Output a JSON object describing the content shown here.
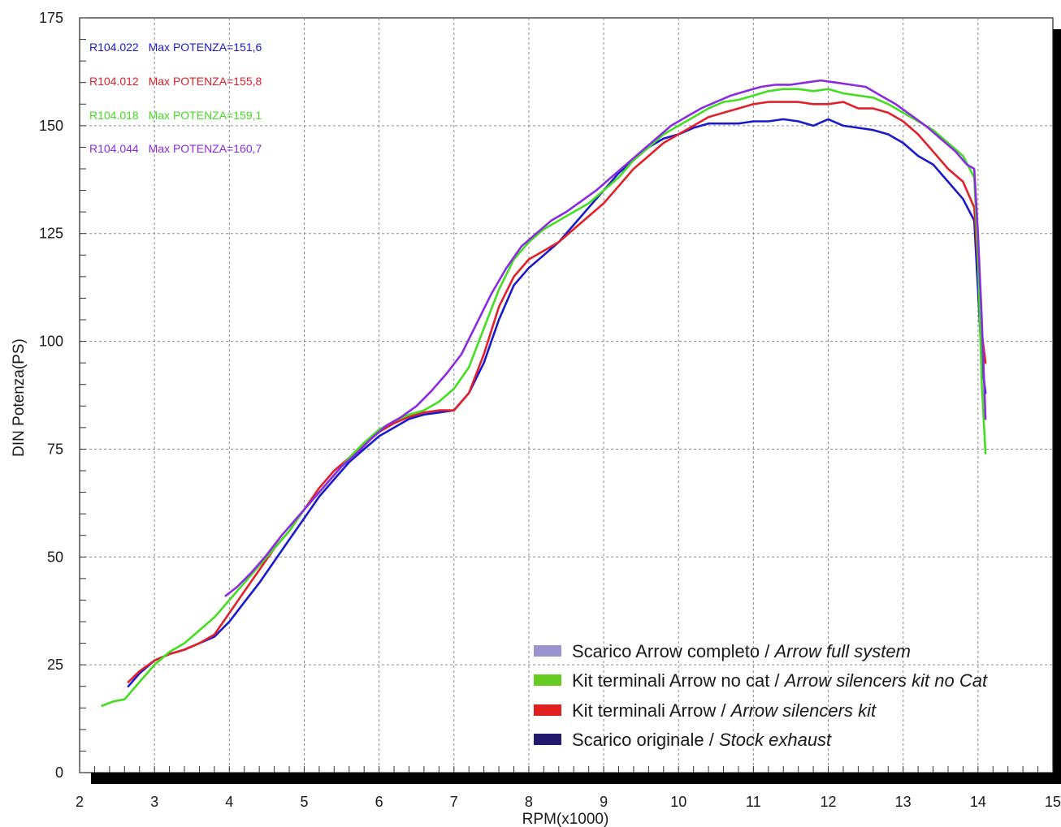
{
  "chart_data": {
    "type": "line",
    "title": "",
    "xlabel": "RPM(x1000)",
    "ylabel": "DIN Potenza(PS)",
    "xlim": [
      2,
      15
    ],
    "ylim": [
      0,
      175
    ],
    "xticks": [
      "2",
      "3",
      "4",
      "5",
      "6",
      "7",
      "8",
      "9",
      "10",
      "11",
      "12",
      "13",
      "14",
      "15"
    ],
    "yticks": [
      "0",
      "25",
      "50",
      "75",
      "100",
      "125",
      "150",
      "175"
    ],
    "grid": true,
    "legend_position": "bottom-right",
    "annotations": [
      {
        "code": "R104.022",
        "text": "Max POTENZA=151,6",
        "color": "#1a1acc"
      },
      {
        "code": "R104.012",
        "text": "Max POTENZA=155,8",
        "color": "#e0202a"
      },
      {
        "code": "R104.018",
        "text": "Max POTENZA=159,1",
        "color": "#44dd22"
      },
      {
        "code": "R104.044",
        "text": "Max POTENZA=160,7",
        "color": "#8a2be2"
      }
    ],
    "legend": [
      {
        "label": "Scarico Arrow completo / ",
        "label_it": "Arrow full system",
        "color": "#9b93cf"
      },
      {
        "label": "Kit terminali Arrow no cat / ",
        "label_it": "Arrow silencers kit no Cat",
        "color": "#66cc22"
      },
      {
        "label": "Kit terminali Arrow / ",
        "label_it": "Arrow silencers kit",
        "color": "#e02020"
      },
      {
        "label": "Scarico originale / ",
        "label_it": "Stock exhaust",
        "color": "#221a6e"
      }
    ],
    "series": [
      {
        "color": "#1a1acc",
        "x": [
          2.65,
          2.8,
          3.0,
          3.2,
          3.4,
          3.6,
          3.8,
          4.0,
          4.2,
          4.4,
          4.6,
          4.8,
          5.0,
          5.2,
          5.4,
          5.6,
          5.8,
          6.0,
          6.2,
          6.4,
          6.6,
          6.8,
          7.0,
          7.2,
          7.4,
          7.6,
          7.8,
          8.0,
          8.2,
          8.4,
          8.6,
          8.8,
          9.0,
          9.2,
          9.4,
          9.6,
          9.8,
          10.0,
          10.2,
          10.4,
          10.6,
          10.8,
          11.0,
          11.2,
          11.4,
          11.6,
          11.8,
          12.0,
          12.2,
          12.4,
          12.6,
          12.8,
          13.0,
          13.2,
          13.4,
          13.6,
          13.8,
          13.95,
          14.0,
          14.05,
          14.1
        ],
        "y": [
          20,
          23,
          26,
          27.5,
          28.5,
          30,
          31.5,
          35,
          39.5,
          44,
          49,
          54,
          59,
          64,
          68,
          72,
          75,
          78,
          80,
          82,
          83,
          83.5,
          84,
          88,
          95,
          105,
          113,
          117,
          120,
          123,
          127,
          131,
          135,
          139,
          142,
          145,
          147,
          148,
          149.5,
          150.5,
          150.5,
          150.5,
          151,
          151,
          151.5,
          151,
          150,
          151.5,
          150,
          149.5,
          149,
          148,
          146,
          143,
          141,
          137,
          133,
          128,
          112,
          95,
          88
        ]
      },
      {
        "color": "#e0202a",
        "x": [
          2.65,
          2.8,
          3.0,
          3.2,
          3.4,
          3.6,
          3.8,
          4.0,
          4.2,
          4.4,
          4.6,
          4.8,
          5.0,
          5.2,
          5.4,
          5.6,
          5.8,
          6.0,
          6.2,
          6.4,
          6.6,
          6.8,
          7.0,
          7.2,
          7.4,
          7.6,
          7.8,
          8.0,
          8.2,
          8.4,
          8.6,
          8.8,
          9.0,
          9.2,
          9.4,
          9.6,
          9.8,
          10.0,
          10.2,
          10.4,
          10.6,
          10.8,
          11.0,
          11.2,
          11.4,
          11.6,
          11.8,
          12.0,
          12.2,
          12.4,
          12.6,
          12.8,
          13.0,
          13.2,
          13.4,
          13.6,
          13.8,
          13.95,
          14.0,
          14.05,
          14.1
        ],
        "y": [
          21,
          23.5,
          26,
          27.5,
          28.5,
          30,
          32,
          37,
          42,
          47,
          52,
          56,
          61,
          66,
          70,
          73,
          76,
          79,
          81,
          82.5,
          83.5,
          84,
          84,
          88,
          97,
          108,
          115,
          119,
          121,
          123,
          126,
          129,
          132,
          136,
          140,
          143,
          146,
          148,
          150,
          152,
          153,
          154,
          155,
          155.5,
          155.5,
          155.5,
          155,
          155,
          155.5,
          154,
          154,
          153,
          151,
          148,
          144,
          140,
          137,
          131,
          118,
          102,
          95
        ]
      },
      {
        "color": "#44dd22",
        "x": [
          2.3,
          2.45,
          2.6,
          2.8,
          3.0,
          3.2,
          3.4,
          3.6,
          3.8,
          4.0,
          4.2,
          4.4,
          4.6,
          4.8,
          5.0,
          5.2,
          5.4,
          5.6,
          5.8,
          6.0,
          6.2,
          6.4,
          6.6,
          6.8,
          7.0,
          7.2,
          7.4,
          7.6,
          7.8,
          8.0,
          8.2,
          8.4,
          8.6,
          8.8,
          9.0,
          9.2,
          9.4,
          9.6,
          9.8,
          10.0,
          10.2,
          10.4,
          10.6,
          10.8,
          11.0,
          11.2,
          11.4,
          11.6,
          11.8,
          12.0,
          12.2,
          12.4,
          12.6,
          12.8,
          13.0,
          13.2,
          13.4,
          13.6,
          13.8,
          13.95,
          14.0,
          14.05,
          14.1
        ],
        "y": [
          15.5,
          16.5,
          17,
          21,
          25,
          28,
          30,
          33,
          36,
          40,
          44,
          48,
          52,
          56,
          61,
          65,
          69,
          73,
          76.5,
          79.5,
          81.5,
          83,
          84,
          86,
          89,
          94,
          103,
          112,
          119,
          123,
          126,
          128,
          130,
          132,
          135,
          138,
          142,
          145,
          148,
          150,
          152,
          154,
          155.5,
          156,
          157,
          158,
          158.5,
          158.5,
          158,
          158.5,
          157.5,
          157,
          156.5,
          155,
          153,
          151,
          149,
          146,
          143,
          138,
          120,
          90,
          74
        ]
      },
      {
        "color": "#8a2be2",
        "x": [
          3.95,
          4.1,
          4.3,
          4.5,
          4.7,
          4.9,
          5.1,
          5.3,
          5.5,
          5.7,
          5.9,
          6.1,
          6.3,
          6.5,
          6.7,
          6.9,
          7.1,
          7.3,
          7.5,
          7.7,
          7.9,
          8.1,
          8.3,
          8.5,
          8.7,
          8.9,
          9.1,
          9.3,
          9.5,
          9.7,
          9.9,
          10.1,
          10.3,
          10.5,
          10.7,
          10.9,
          11.1,
          11.3,
          11.5,
          11.7,
          11.9,
          12.1,
          12.3,
          12.5,
          12.7,
          12.9,
          13.1,
          13.3,
          13.5,
          13.7,
          13.85,
          13.95,
          14.0,
          14.05,
          14.1
        ],
        "y": [
          41,
          43,
          46.5,
          50.5,
          55,
          59,
          63,
          67,
          71,
          74,
          77.5,
          80.5,
          82.5,
          85,
          88.5,
          92.5,
          97,
          104,
          111,
          117,
          122,
          125,
          128,
          130,
          132.5,
          135,
          138,
          141,
          144,
          147,
          150,
          152,
          154,
          155.5,
          157,
          158,
          159,
          159.5,
          159.5,
          160,
          160.5,
          160,
          159.5,
          159,
          157,
          155,
          152.5,
          150,
          147,
          144,
          141,
          140,
          125,
          105,
          82
        ]
      }
    ]
  }
}
